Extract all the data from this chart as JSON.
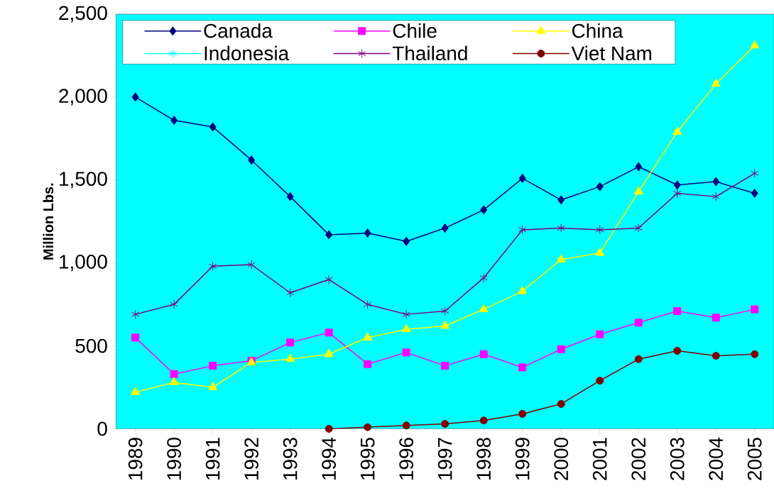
{
  "chart_data": {
    "type": "line",
    "ylabel": "Million Lbs.",
    "categories": [
      "1989",
      "1990",
      "1991",
      "1992",
      "1993",
      "1994",
      "1995",
      "1996",
      "1997",
      "1998",
      "1999",
      "2000",
      "2001",
      "2002",
      "2003",
      "2004",
      "2005"
    ],
    "ylim": [
      0,
      2500
    ],
    "yticks": [
      0,
      500,
      {
        "value": 1000,
        "label": "1,000"
      },
      {
        "value": 1500,
        "label": "1,500"
      },
      {
        "value": 2000,
        "label": "2,000"
      },
      {
        "value": 2500,
        "label": "2,500"
      }
    ],
    "legend": "top",
    "grid": false,
    "series": [
      {
        "name": "Canada",
        "color": "#000080",
        "marker": "diamond",
        "values": [
          2000,
          1860,
          1820,
          1620,
          1400,
          1170,
          1180,
          1130,
          1210,
          1320,
          1510,
          1380,
          1460,
          1580,
          1470,
          1490,
          1420
        ]
      },
      {
        "name": "Chile",
        "color": "#ff00ff",
        "marker": "square",
        "values": [
          550,
          330,
          380,
          410,
          520,
          580,
          390,
          460,
          380,
          450,
          370,
          480,
          570,
          640,
          710,
          670,
          720
        ]
      },
      {
        "name": "China",
        "color": "#ffff00",
        "marker": "triangle",
        "values": [
          220,
          280,
          250,
          400,
          420,
          450,
          550,
          600,
          620,
          720,
          830,
          1020,
          1060,
          1430,
          1790,
          2080,
          2310
        ]
      },
      {
        "name": "Indonesia",
        "color": "#00ffff",
        "marker": "cross",
        "values": [
          null,
          null,
          null,
          null,
          null,
          null,
          null,
          null,
          null,
          null,
          null,
          null,
          null,
          null,
          null,
          null,
          null
        ]
      },
      {
        "name": "Thailand",
        "color": "#800080",
        "marker": "cross",
        "values": [
          690,
          750,
          980,
          990,
          820,
          900,
          750,
          690,
          710,
          910,
          1200,
          1210,
          1200,
          1210,
          1420,
          1400,
          1540
        ]
      },
      {
        "name": "Viet Nam",
        "color": "#800000",
        "marker": "circle",
        "values": [
          null,
          null,
          null,
          null,
          null,
          0,
          10,
          20,
          30,
          50,
          90,
          150,
          290,
          420,
          470,
          440,
          450
        ]
      }
    ]
  }
}
